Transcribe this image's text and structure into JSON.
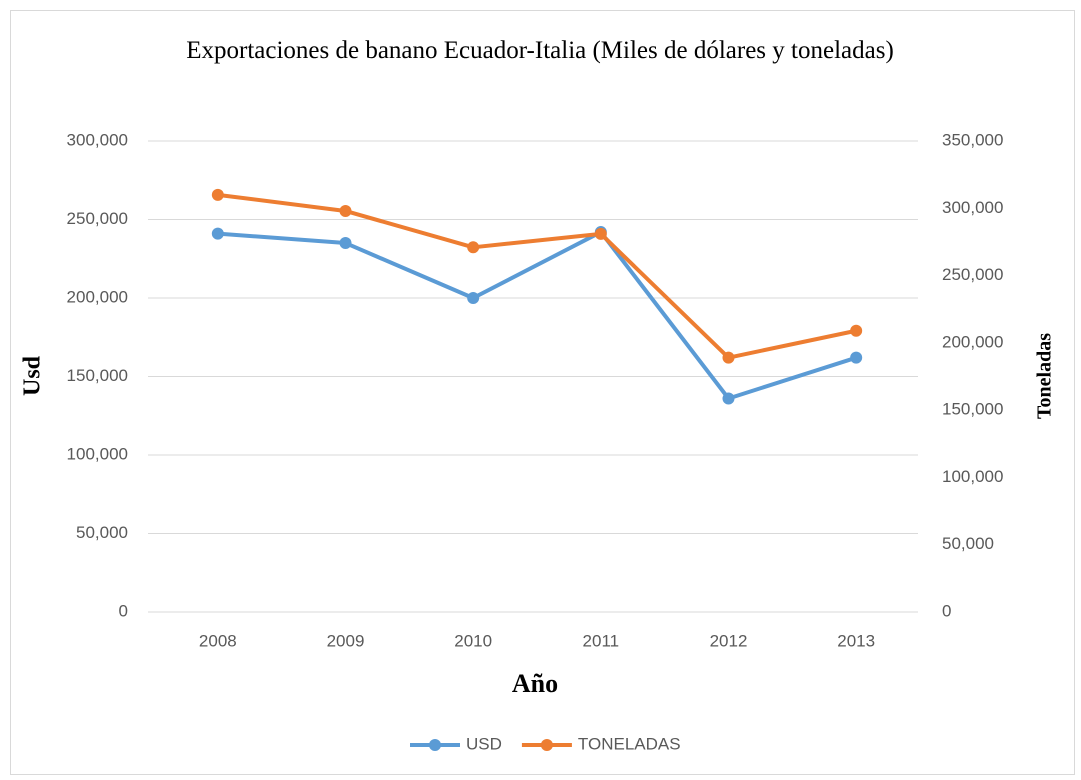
{
  "chart_data": {
    "type": "line",
    "title": "Exportaciones de banano Ecuador-Italia (Miles de dólares y toneladas)",
    "xlabel": "Año",
    "ylabel": "Usd",
    "y2label": "Toneladas",
    "categories": [
      "2008",
      "2009",
      "2010",
      "2011",
      "2012",
      "2013"
    ],
    "series": [
      {
        "name": "USD",
        "color": "#5b9bd5",
        "values": [
          241000,
          235000,
          200000,
          242000,
          136000,
          162000
        ]
      },
      {
        "name": "TONELADAS",
        "color": "#ed7d31",
        "axis": "y2",
        "values": [
          310000,
          298000,
          271000,
          281000,
          189000,
          209000
        ]
      }
    ],
    "ylim": [
      0,
      300000
    ],
    "yticks": [
      0,
      {
        "value": 50000,
        "label": "50,000"
      },
      {
        "value": 100000,
        "label": "100,000"
      },
      {
        "value": 150000,
        "label": "150,000"
      },
      {
        "value": 200000,
        "label": "200,000"
      },
      {
        "value": 250000,
        "label": "250,000"
      },
      {
        "value": 300000,
        "label": "300,000"
      }
    ],
    "y2lim": [
      0,
      350000
    ],
    "y2ticks": [
      0,
      {
        "value": 50000,
        "label": "50,000"
      },
      {
        "value": 100000,
        "label": "100,000"
      },
      {
        "value": 150000,
        "label": "150,000"
      },
      {
        "value": 200000,
        "label": "200,000"
      },
      {
        "value": 250000,
        "label": "250,000"
      },
      {
        "value": 300000,
        "label": "300,000"
      },
      {
        "value": 350000,
        "label": "350,000"
      }
    ],
    "grid": true,
    "legend": "bottom"
  }
}
